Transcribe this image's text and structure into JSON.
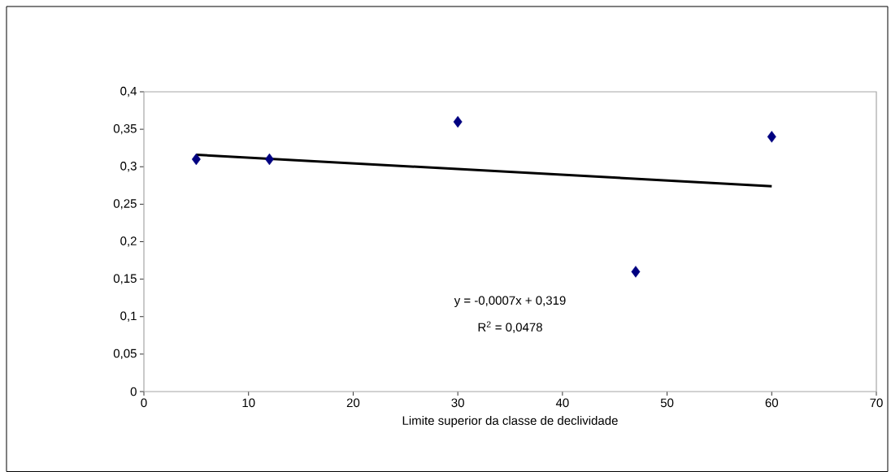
{
  "chart_data": {
    "type": "scatter",
    "xlabel": "Limite superior da classe de declividade",
    "xlim": [
      0,
      70
    ],
    "xticks": [
      0,
      10,
      20,
      30,
      40,
      50,
      60,
      70
    ],
    "ylim": [
      0,
      0.4
    ],
    "yticks": [
      {
        "value": 0,
        "label": "0"
      },
      {
        "value": 0.05,
        "label": "0,05"
      },
      {
        "value": 0.1,
        "label": "0,1"
      },
      {
        "value": 0.15,
        "label": "0,15"
      },
      {
        "value": 0.2,
        "label": "0,2"
      },
      {
        "value": 0.25,
        "label": "0,25"
      },
      {
        "value": 0.3,
        "label": "0,3"
      },
      {
        "value": 0.35,
        "label": "0,35"
      },
      {
        "value": 0.4,
        "label": "0,4"
      }
    ],
    "series": [
      {
        "color": "#000080",
        "marker": "diamond",
        "x": [
          5,
          12,
          30,
          47,
          60
        ],
        "values": [
          0.31,
          0.31,
          0.36,
          0.16,
          0.34
        ]
      },
      {
        "type": "line",
        "color": "#000000",
        "marker": "none",
        "line_style": "solid",
        "x": [
          5,
          60
        ],
        "values": [
          0.316,
          0.274
        ]
      }
    ],
    "annotations": [
      "y = -0,0007x + 0,319",
      "R$^{2}$ = 0,0478"
    ]
  }
}
